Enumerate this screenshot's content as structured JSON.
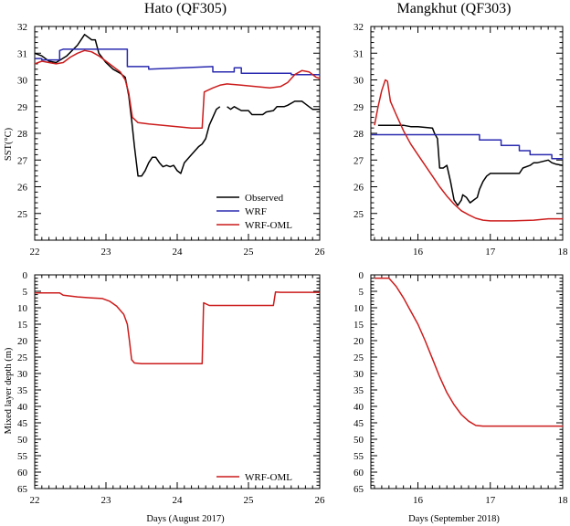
{
  "titles": {
    "left": "Hato (QF305)",
    "right": "Mangkhut (QF303)"
  },
  "xlabels": {
    "left": "Days (August 2017)",
    "right": "Days (September 2018)"
  },
  "ylabels": {
    "top": "SST(°C)",
    "bottom": "Mixed layer depth (m)"
  },
  "legend_sst": {
    "observed": "Observed",
    "wrf": "WRF",
    "wrf_oml": "WRF-OML"
  },
  "legend_mld": {
    "wrf_oml": "WRF-OML"
  },
  "colors": {
    "observed": "#000000",
    "wrf": "#2a2ab0",
    "wrf_oml": "#cc1c1c"
  },
  "chart_data": [
    {
      "id": "hato_sst",
      "type": "line",
      "title": "Hato (QF305)",
      "ylabel": "SST(°C)",
      "xlim": [
        22,
        26
      ],
      "ylim": [
        24,
        32
      ],
      "xticks": [
        22,
        23,
        24,
        25,
        26
      ],
      "yticks": [
        25,
        26,
        27,
        28,
        29,
        30,
        31,
        32
      ],
      "legend": "lower-right",
      "series": [
        {
          "name": "Observed",
          "color": "#000000",
          "points": [
            [
              22.0,
              31.0
            ],
            [
              22.1,
              30.9
            ],
            [
              22.2,
              30.7
            ],
            [
              22.3,
              30.65
            ],
            [
              22.45,
              30.9
            ],
            [
              22.6,
              31.3
            ],
            [
              22.7,
              31.7
            ],
            [
              22.8,
              31.5
            ],
            [
              22.85,
              31.5
            ],
            [
              22.9,
              31.0
            ],
            [
              23.0,
              30.65
            ],
            [
              23.1,
              30.4
            ],
            [
              23.2,
              30.25
            ],
            [
              23.27,
              30.1
            ],
            [
              23.32,
              29.4
            ],
            [
              23.36,
              28.5
            ],
            [
              23.4,
              27.5
            ],
            [
              23.45,
              26.4
            ],
            [
              23.5,
              26.4
            ],
            [
              23.55,
              26.6
            ],
            [
              23.6,
              26.9
            ],
            [
              23.65,
              27.1
            ],
            [
              23.7,
              27.1
            ],
            [
              23.75,
              26.9
            ],
            [
              23.8,
              26.75
            ],
            [
              23.85,
              26.8
            ],
            [
              23.9,
              26.75
            ],
            [
              23.95,
              26.8
            ],
            [
              24.0,
              26.6
            ],
            [
              24.05,
              26.5
            ],
            [
              24.1,
              26.9
            ],
            [
              24.2,
              27.2
            ],
            [
              24.3,
              27.5
            ],
            [
              24.35,
              27.6
            ],
            [
              24.4,
              27.8
            ],
            [
              24.45,
              28.3
            ],
            [
              24.5,
              28.6
            ],
            [
              24.55,
              28.9
            ],
            [
              24.6,
              29.0
            ],
            null,
            [
              24.7,
              29.0
            ],
            [
              24.75,
              28.9
            ],
            [
              24.8,
              29.0
            ],
            [
              24.9,
              28.85
            ],
            [
              25.0,
              28.85
            ],
            [
              25.05,
              28.7
            ],
            [
              25.2,
              28.7
            ],
            [
              25.25,
              28.8
            ],
            [
              25.35,
              28.85
            ],
            [
              25.4,
              29.0
            ],
            [
              25.5,
              29.0
            ],
            [
              25.55,
              29.05
            ],
            [
              25.65,
              29.2
            ],
            [
              25.75,
              29.2
            ],
            [
              25.8,
              29.1
            ],
            [
              25.85,
              29.0
            ],
            [
              25.9,
              28.9
            ],
            [
              26.0,
              28.9
            ]
          ]
        },
        {
          "name": "WRF",
          "color": "#2a2ab0",
          "points": [
            [
              22.0,
              30.8
            ],
            [
              22.1,
              30.8
            ],
            [
              22.1,
              30.75
            ],
            [
              22.35,
              30.75
            ],
            [
              22.35,
              31.1
            ],
            [
              22.4,
              31.15
            ],
            [
              22.8,
              31.15
            ],
            [
              23.3,
              31.15
            ],
            [
              23.3,
              30.5
            ],
            [
              23.6,
              30.5
            ],
            [
              23.6,
              30.4
            ],
            [
              24.5,
              30.5
            ],
            [
              24.5,
              30.3
            ],
            [
              24.8,
              30.3
            ],
            [
              24.8,
              30.45
            ],
            [
              24.9,
              30.45
            ],
            [
              24.9,
              30.25
            ],
            [
              25.6,
              30.25
            ],
            [
              25.6,
              30.2
            ],
            [
              26.0,
              30.2
            ]
          ]
        },
        {
          "name": "WRF-OML",
          "color": "#cc1c1c",
          "points": [
            [
              22.0,
              30.6
            ],
            [
              22.1,
              30.7
            ],
            [
              22.2,
              30.65
            ],
            [
              22.3,
              30.6
            ],
            [
              22.4,
              30.65
            ],
            [
              22.5,
              30.85
            ],
            [
              22.6,
              31.0
            ],
            [
              22.7,
              31.1
            ],
            [
              22.8,
              31.05
            ],
            [
              22.9,
              30.9
            ],
            [
              23.0,
              30.7
            ],
            [
              23.1,
              30.5
            ],
            [
              23.2,
              30.3
            ],
            [
              23.27,
              30.0
            ],
            [
              23.32,
              29.5
            ],
            [
              23.37,
              28.6
            ],
            [
              23.45,
              28.4
            ],
            [
              23.6,
              28.35
            ],
            [
              23.8,
              28.3
            ],
            [
              24.0,
              28.25
            ],
            [
              24.2,
              28.2
            ],
            [
              24.35,
              28.2
            ],
            [
              24.38,
              29.55
            ],
            [
              24.5,
              29.7
            ],
            [
              24.6,
              29.8
            ],
            [
              24.7,
              29.85
            ],
            [
              24.9,
              29.8
            ],
            [
              25.1,
              29.75
            ],
            [
              25.3,
              29.7
            ],
            [
              25.45,
              29.75
            ],
            [
              25.55,
              29.9
            ],
            [
              25.65,
              30.2
            ],
            [
              25.75,
              30.35
            ],
            [
              25.85,
              30.3
            ],
            [
              25.95,
              30.1
            ],
            [
              26.0,
              30.05
            ]
          ]
        }
      ]
    },
    {
      "id": "mangkhut_sst",
      "type": "line",
      "title": "Mangkhut (QF303)",
      "xlim": [
        15.35,
        18
      ],
      "ylim": [
        24,
        32
      ],
      "xticks": [
        16,
        17,
        18
      ],
      "yticks": [
        25,
        26,
        27,
        28,
        29,
        30,
        31,
        32
      ],
      "series": [
        {
          "name": "Observed",
          "color": "#000000",
          "points": [
            [
              15.45,
              28.3
            ],
            [
              15.8,
              28.3
            ],
            [
              15.9,
              28.25
            ],
            [
              16.0,
              28.25
            ],
            [
              16.2,
              28.2
            ],
            [
              16.23,
              28.0
            ],
            [
              16.27,
              27.8
            ],
            [
              16.3,
              26.7
            ],
            [
              16.35,
              26.7
            ],
            [
              16.4,
              26.8
            ],
            [
              16.45,
              26.2
            ],
            [
              16.5,
              25.5
            ],
            [
              16.55,
              25.3
            ],
            [
              16.6,
              25.5
            ],
            [
              16.62,
              25.7
            ],
            [
              16.67,
              25.6
            ],
            [
              16.72,
              25.4
            ],
            [
              16.77,
              25.5
            ],
            [
              16.82,
              25.6
            ],
            [
              16.85,
              25.9
            ],
            [
              16.9,
              26.2
            ],
            [
              16.95,
              26.4
            ],
            [
              17.0,
              26.5
            ],
            [
              17.4,
              26.5
            ],
            [
              17.45,
              26.7
            ],
            [
              17.55,
              26.8
            ],
            [
              17.6,
              26.9
            ],
            [
              17.65,
              26.9
            ],
            [
              17.8,
              27.0
            ],
            [
              17.85,
              26.9
            ],
            [
              17.9,
              26.85
            ],
            [
              18.0,
              26.8
            ]
          ]
        },
        {
          "name": "WRF",
          "color": "#2a2ab0",
          "points": [
            [
              15.35,
              27.95
            ],
            [
              16.85,
              27.95
            ],
            [
              16.85,
              27.75
            ],
            [
              17.15,
              27.75
            ],
            [
              17.15,
              27.55
            ],
            [
              17.4,
              27.55
            ],
            [
              17.4,
              27.35
            ],
            [
              17.55,
              27.35
            ],
            [
              17.55,
              27.2
            ],
            [
              17.85,
              27.2
            ],
            [
              17.85,
              27.05
            ],
            [
              18.0,
              27.05
            ]
          ]
        },
        {
          "name": "WRF-OML",
          "color": "#cc1c1c",
          "points": [
            [
              15.4,
              28.3
            ],
            [
              15.45,
              29.0
            ],
            [
              15.5,
              29.6
            ],
            [
              15.55,
              30.0
            ],
            [
              15.58,
              29.95
            ],
            [
              15.62,
              29.2
            ],
            [
              15.7,
              28.7
            ],
            [
              15.8,
              28.1
            ],
            [
              15.9,
              27.6
            ],
            [
              16.0,
              27.2
            ],
            [
              16.1,
              26.8
            ],
            [
              16.2,
              26.4
            ],
            [
              16.3,
              26.0
            ],
            [
              16.4,
              25.65
            ],
            [
              16.5,
              25.35
            ],
            [
              16.6,
              25.1
            ],
            [
              16.7,
              24.95
            ],
            [
              16.8,
              24.82
            ],
            [
              16.9,
              24.75
            ],
            [
              17.0,
              24.72
            ],
            [
              17.3,
              24.72
            ],
            [
              17.6,
              24.75
            ],
            [
              17.8,
              24.8
            ],
            [
              18.0,
              24.8
            ]
          ]
        }
      ]
    },
    {
      "id": "hato_mld",
      "type": "line",
      "ylabel": "Mixed layer depth (m)",
      "xlabel": "Days (August 2017)",
      "xlim": [
        22,
        26
      ],
      "ylim": [
        0,
        65
      ],
      "y_inverted": true,
      "xticks": [
        22,
        23,
        24,
        25,
        26
      ],
      "yticks": [
        0,
        5,
        10,
        15,
        20,
        25,
        30,
        35,
        40,
        45,
        50,
        55,
        60,
        65
      ],
      "legend": "lower-right",
      "series": [
        {
          "name": "WRF-OML",
          "color": "#cc1c1c",
          "points": [
            [
              22.0,
              5.5
            ],
            [
              22.35,
              5.5
            ],
            [
              22.4,
              6.2
            ],
            [
              22.6,
              6.7
            ],
            [
              22.8,
              7.0
            ],
            [
              22.95,
              7.2
            ],
            [
              23.05,
              8.0
            ],
            [
              23.15,
              9.5
            ],
            [
              23.25,
              12.0
            ],
            [
              23.3,
              15.0
            ],
            [
              23.33,
              20.0
            ],
            [
              23.36,
              25.8
            ],
            [
              23.4,
              26.8
            ],
            [
              23.5,
              27.0
            ],
            [
              24.35,
              27.0
            ],
            [
              24.37,
              8.5
            ],
            [
              24.45,
              9.3
            ],
            [
              25.0,
              9.3
            ],
            [
              25.35,
              9.3
            ],
            [
              25.38,
              5.2
            ],
            [
              25.45,
              5.3
            ],
            [
              26.0,
              5.3
            ]
          ]
        }
      ]
    },
    {
      "id": "mangkhut_mld",
      "type": "line",
      "xlabel": "Days (September 2018)",
      "xlim": [
        15.35,
        18
      ],
      "ylim": [
        0,
        65
      ],
      "y_inverted": true,
      "xticks": [
        16,
        17,
        18
      ],
      "yticks": [
        0,
        5,
        10,
        15,
        20,
        25,
        30,
        35,
        40,
        45,
        50,
        55,
        60,
        65
      ],
      "series": [
        {
          "name": "WRF-OML",
          "color": "#cc1c1c",
          "points": [
            [
              15.4,
              1.0
            ],
            [
              15.6,
              1.0
            ],
            [
              15.7,
              3.5
            ],
            [
              15.8,
              7.0
            ],
            [
              15.9,
              11.0
            ],
            [
              16.0,
              15.0
            ],
            [
              16.1,
              20.0
            ],
            [
              16.2,
              25.5
            ],
            [
              16.3,
              31.0
            ],
            [
              16.4,
              35.8
            ],
            [
              16.5,
              39.5
            ],
            [
              16.6,
              42.5
            ],
            [
              16.7,
              44.5
            ],
            [
              16.8,
              45.8
            ],
            [
              16.9,
              46.0
            ],
            [
              17.2,
              46.0
            ],
            [
              18.0,
              46.0
            ]
          ]
        }
      ]
    }
  ]
}
